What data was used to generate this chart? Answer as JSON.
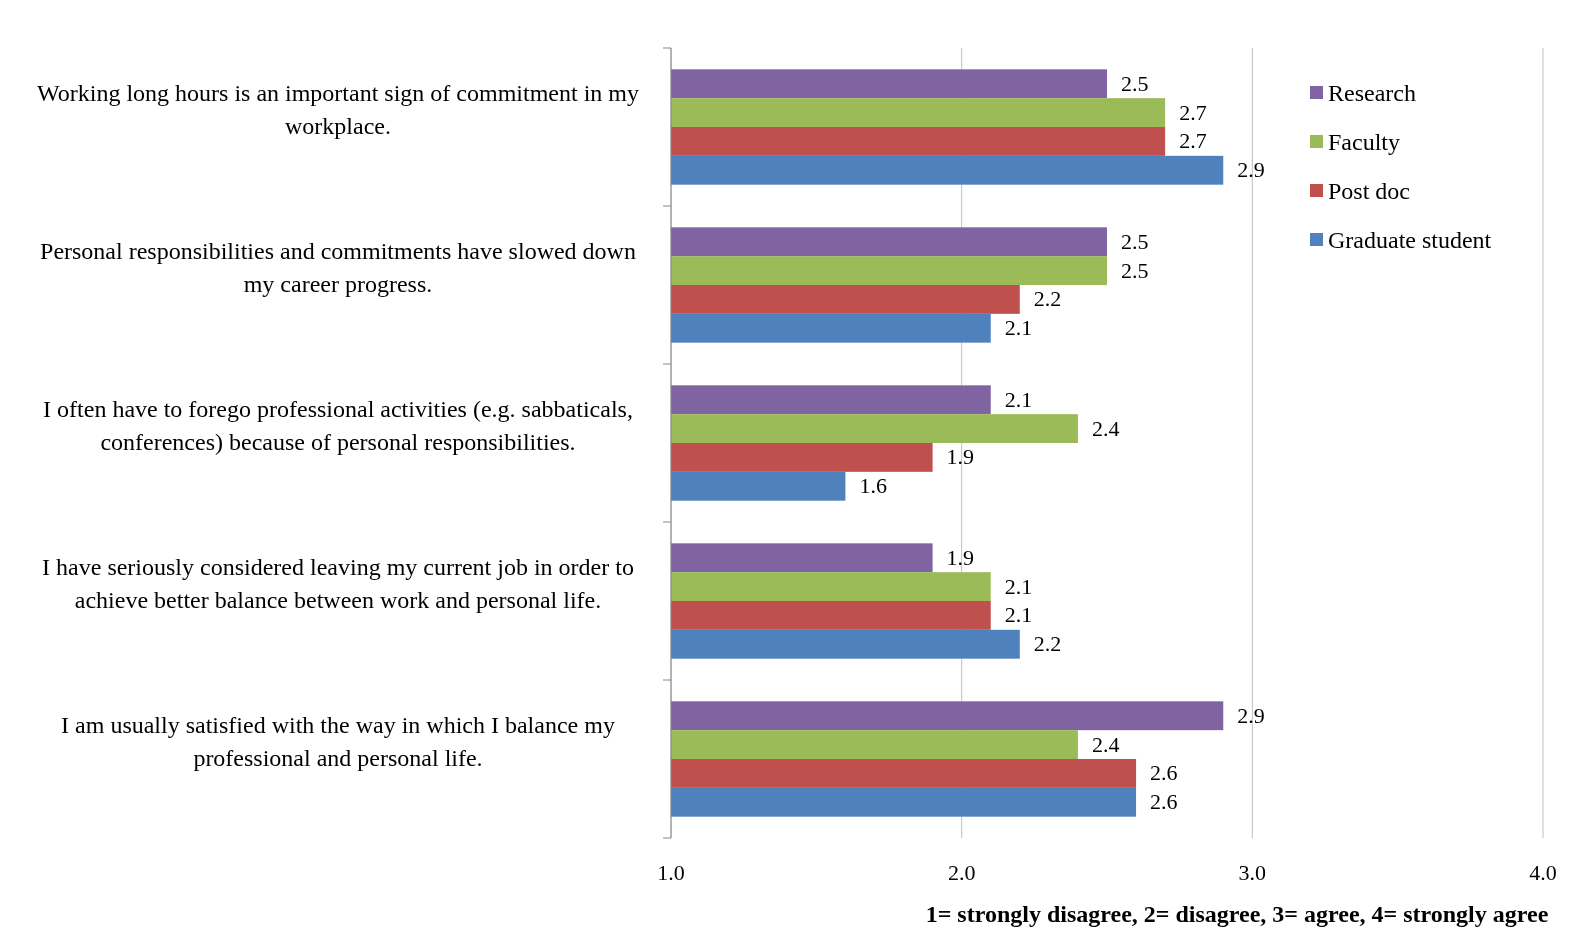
{
  "chart_data": {
    "type": "bar",
    "orientation": "horizontal",
    "xlabel": "1= strongly disagree, 2= disagree, 3= agree, 4= strongly agree",
    "categories": [
      "Working long hours is an important sign of commitment in my workplace.",
      "Personal responsibilities and commitments have slowed down my career progress.",
      "I often have to forego professional activities (e.g. sabbaticals, conferences) because of personal responsibilities.",
      "I have seriously considered leaving my current job in order to achieve better balance between work and personal life.",
      "I am usually satisfied with the way in which I balance my professional and personal life."
    ],
    "series": [
      {
        "name": "Research",
        "color": "#8064a2",
        "values": [
          2.5,
          2.5,
          2.1,
          1.9,
          2.9
        ]
      },
      {
        "name": "Faculty",
        "color": "#9bbb59",
        "values": [
          2.7,
          2.5,
          2.4,
          2.1,
          2.4
        ]
      },
      {
        "name": "Post doc",
        "color": "#c0504d",
        "values": [
          2.7,
          2.2,
          1.9,
          2.1,
          2.6
        ]
      },
      {
        "name": "Graduate student",
        "color": "#4f81bd",
        "values": [
          2.9,
          2.1,
          1.6,
          2.2,
          2.6
        ]
      }
    ],
    "xlim": [
      1,
      4
    ],
    "xticks": [
      {
        "value": 1,
        "label": "1.0"
      },
      {
        "value": 2,
        "label": "2.0"
      },
      {
        "value": 3,
        "label": "3.0"
      },
      {
        "value": 4,
        "label": "4.0"
      }
    ],
    "grid": "x",
    "legend": "right",
    "data_labels": true
  }
}
